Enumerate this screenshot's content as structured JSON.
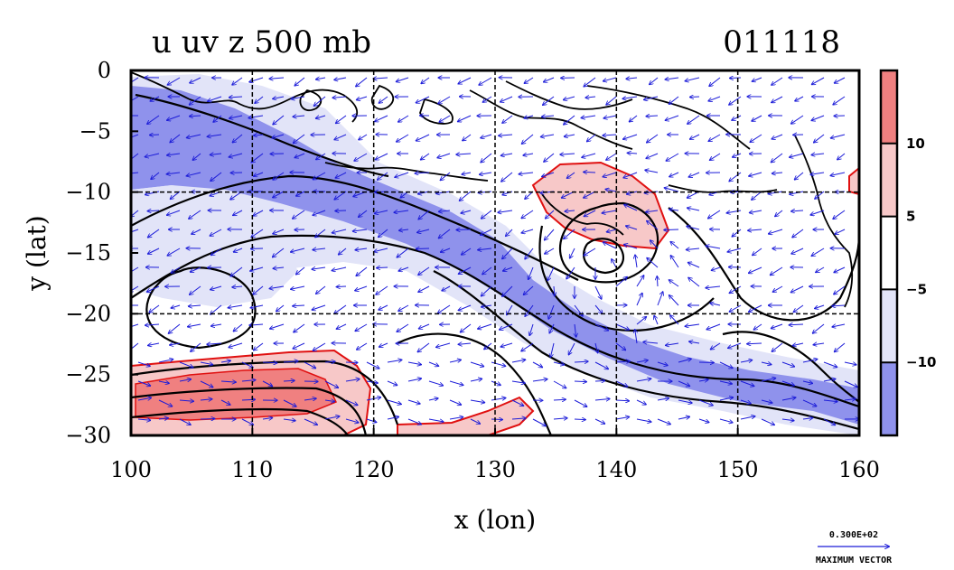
{
  "chart_data": {
    "type": "heatmap",
    "title": "u uv z 500 mb",
    "title_right": "011118",
    "xlabel": "x (lon)",
    "ylabel": "y (lat)",
    "xlim": [
      100,
      160
    ],
    "ylim": [
      -30,
      0
    ],
    "xticks": [
      100,
      110,
      120,
      130,
      140,
      150,
      160
    ],
    "yticks": [
      0,
      -5,
      -10,
      -15,
      -20,
      -25,
      -30
    ],
    "xtick_labels": [
      "100",
      "110",
      "120",
      "130",
      "140",
      "150",
      "160"
    ],
    "ytick_labels": [
      "0",
      "−5",
      "−10",
      "−15",
      "−20",
      "−25",
      "−30"
    ],
    "grid": true,
    "grid_lines_x": [
      110,
      120,
      130,
      140,
      150
    ],
    "grid_lines_y": [
      -10,
      -20
    ],
    "colorbar": {
      "tick_labels": [
        "10",
        "5",
        "−5",
        "−10"
      ],
      "levels": [
        10,
        5,
        -5,
        -10
      ],
      "colors": [
        "#f08080",
        "#f7c8c8",
        "#ffffff",
        "#e2e4f8",
        "#8f92ec"
      ]
    },
    "vector_legend": {
      "magnitude": "0.300E+02",
      "label": "MAXIMUM VECTOR"
    }
  },
  "colors": {
    "neg_strong": "#8f92ec",
    "neg_weak": "#e2e4f8",
    "pos_weak": "#f7c8c8",
    "pos_strong": "#f08080",
    "contour": "#000000",
    "vector": "#1b1bd8",
    "pos_outline": "#e01010",
    "coast": "#000000"
  }
}
